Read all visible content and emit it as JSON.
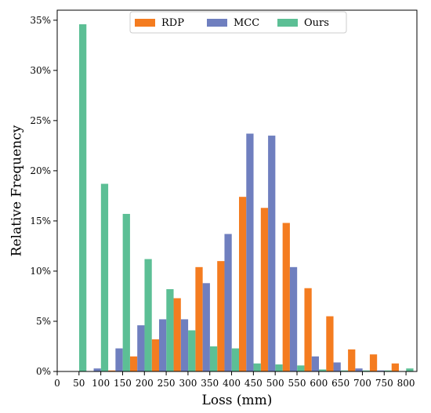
{
  "chart_data": {
    "type": "bar",
    "title": "",
    "xlabel": "Loss (mm)",
    "ylabel": "Relative Frequency",
    "x_ticks": [
      "0",
      "50",
      "100",
      "150",
      "200",
      "250",
      "300",
      "350",
      "400",
      "450",
      "500",
      "550",
      "600",
      "650",
      "700",
      "750",
      "800"
    ],
    "y_ticks": [
      "0%",
      "5%",
      "10%",
      "15%",
      "20%",
      "25%",
      "30%",
      "35%"
    ],
    "ylim": [
      0,
      36
    ],
    "xlim": [
      0,
      825
    ],
    "bin_width": 50,
    "bin_starts": [
      0,
      50,
      100,
      150,
      200,
      250,
      300,
      350,
      400,
      450,
      500,
      550,
      600,
      650,
      700,
      750
    ],
    "grid": false,
    "legend_position": "top-center",
    "series": [
      {
        "name": "RDP",
        "color": "#f47c20",
        "values": [
          0,
          0,
          0.1,
          1.5,
          3.2,
          7.3,
          10.4,
          11.0,
          17.4,
          16.3,
          14.8,
          8.3,
          5.5,
          2.2,
          1.7,
          0.8
        ]
      },
      {
        "name": "MCC",
        "color": "#6f7fbf",
        "values": [
          0,
          0.3,
          2.3,
          4.6,
          5.2,
          5.2,
          8.8,
          13.7,
          23.7,
          23.5,
          10.4,
          1.5,
          0.9,
          0.3,
          0.1,
          0
        ]
      },
      {
        "name": "Ours",
        "color": "#5cbf95",
        "values": [
          34.6,
          18.7,
          15.7,
          11.2,
          8.2,
          4.1,
          2.5,
          2.3,
          0.8,
          0.7,
          0.6,
          0.2,
          0.1,
          0.1,
          0.1,
          0.3
        ]
      }
    ]
  }
}
